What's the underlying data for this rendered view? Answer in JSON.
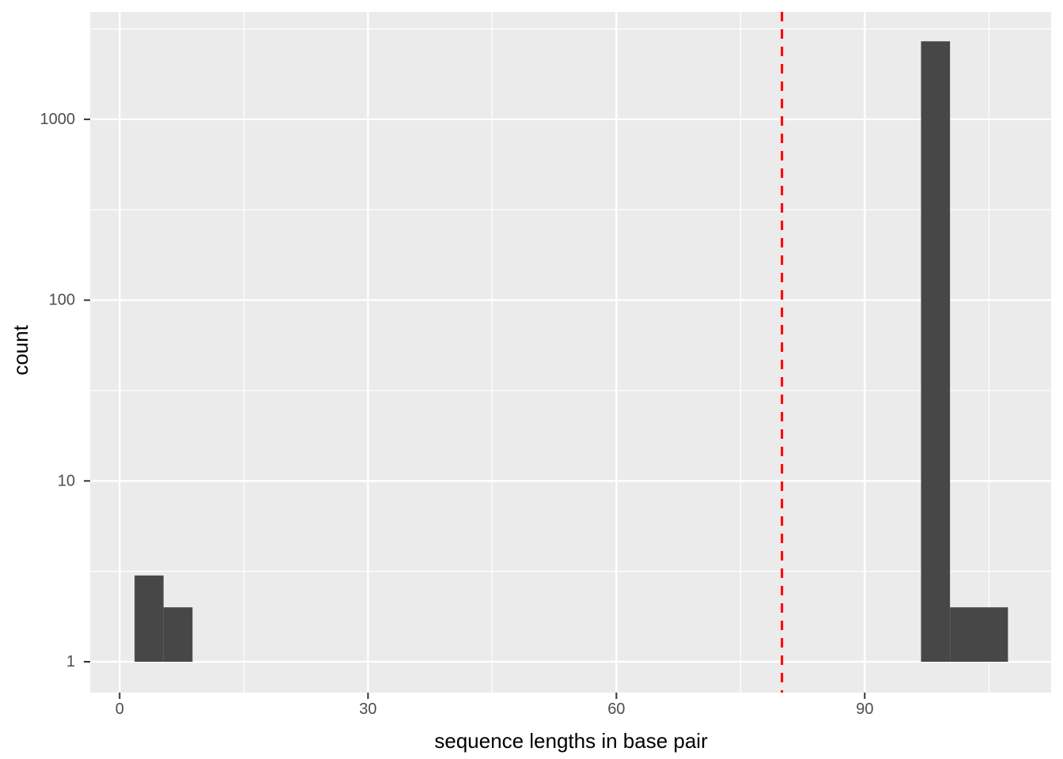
{
  "chart_data": {
    "type": "histogram",
    "title": "",
    "xlabel": "sequence lengths in base pair",
    "ylabel": "count",
    "x_axis": {
      "ticks": [
        0,
        30,
        60,
        90
      ],
      "range": [
        -3.6,
        112.5
      ],
      "scale": "linear"
    },
    "y_axis": {
      "ticks": [
        1,
        10,
        100,
        1000
      ],
      "range": [
        0.68,
        3900
      ],
      "scale": "log10"
    },
    "bins": [
      {
        "x_start": 1.8,
        "x_end": 5.3,
        "count": 3
      },
      {
        "x_start": 5.3,
        "x_end": 8.8,
        "count": 2
      },
      {
        "x_start": 96.8,
        "x_end": 100.3,
        "count": 2700
      },
      {
        "x_start": 100.3,
        "x_end": 107.3,
        "count": 2
      }
    ],
    "vline": {
      "x": 80,
      "color": "#FF0000",
      "style": "dashed"
    },
    "grid": {
      "major": true,
      "minor": true
    },
    "legend": "none",
    "style": {
      "panel_bg": "#EBEBEB",
      "bar_fill": "#474747",
      "grid_color": "#FFFFFF",
      "tick_label_color": "#4D4D4D",
      "axis_title_color": "#000000",
      "tick_mark_color": "#333333",
      "outer_bg": "#FFFFFF"
    }
  }
}
